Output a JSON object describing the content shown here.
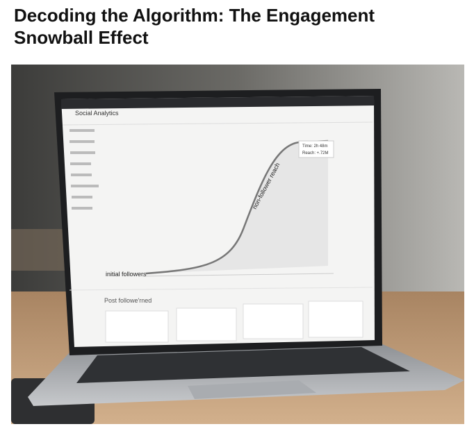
{
  "header": {
    "title": "Decoding the Algorithm: The Engagement Snowball Effect"
  },
  "image": {
    "app_title": "Social Analytics",
    "curve_label": "non-follower reach",
    "baseline_label": "initial followers",
    "tooltip": [
      "Time: 2h 48m",
      "Reach: +.72M"
    ],
    "section_title": "Post followe'rned"
  }
}
